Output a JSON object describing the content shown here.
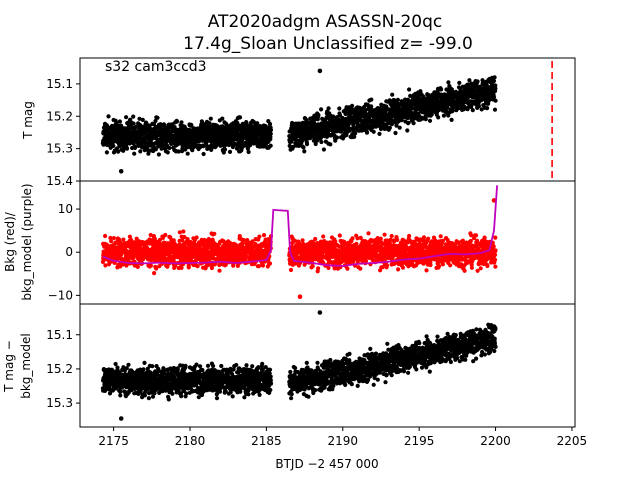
{
  "title_line1": "AT2020adgm  ASASSN-20qc",
  "title_line2": "17.4g_Sloan Unclassified z= -99.0",
  "annotation": "s32 cam3ccd3",
  "xlabel": "BTJD −2 457 000",
  "colors": {
    "points": "#000000",
    "bkg": "#ff0000",
    "model": "#bf00bf",
    "marker": "#ff0000"
  },
  "chart_data": [
    {
      "type": "scatter",
      "panel": "top",
      "ylabel": "T mag",
      "xlim": [
        2172.8,
        2205.2
      ],
      "ylim": [
        15.4,
        15.02
      ],
      "yticks": [
        15.1,
        15.2,
        15.3,
        15.4
      ],
      "ytick_labels": [
        "15.1",
        "15.2",
        "15.3",
        "15.4"
      ],
      "segments": [
        {
          "x_start": 2174.3,
          "x_end": 2185.3,
          "center_start": 15.26,
          "center_end": 15.26,
          "spread": 0.045
        },
        {
          "x_start": 2186.5,
          "x_end": 2200.0,
          "center_start": 15.26,
          "center_end": 15.12,
          "spread": 0.045
        }
      ],
      "outliers": [
        {
          "x": 2188.5,
          "y": 15.06
        },
        {
          "x": 2175.5,
          "y": 15.37
        }
      ],
      "vline_x": 2203.7
    },
    {
      "type": "scatter",
      "panel": "middle",
      "ylabel_line1": "Bkg (red)/",
      "ylabel_line2": "bkg_model (purple)",
      "xlim": [
        2172.8,
        2205.2
      ],
      "ylim": [
        -12,
        16.5
      ],
      "yticks": [
        10,
        0,
        -10
      ],
      "ytick_labels": [
        "10",
        "0",
        "−10"
      ],
      "segments": [
        {
          "x_start": 2174.3,
          "x_end": 2185.3,
          "center": 0,
          "spread": 3.2
        },
        {
          "x_start": 2186.5,
          "x_end": 2200.0,
          "center": 0,
          "spread": 3.2
        }
      ],
      "model": [
        [
          2174.3,
          -1.0
        ],
        [
          2175.0,
          -2.0
        ],
        [
          2176.0,
          -2.5
        ],
        [
          2177.0,
          -2.6
        ],
        [
          2178.0,
          -2.4
        ],
        [
          2179.0,
          -2.6
        ],
        [
          2180.0,
          -2.5
        ],
        [
          2181.0,
          -2.4
        ],
        [
          2182.0,
          -2.2
        ],
        [
          2183.0,
          -2.5
        ],
        [
          2184.0,
          -2.2
        ],
        [
          2185.0,
          -1.8
        ],
        [
          2185.3,
          0.5
        ],
        [
          2185.45,
          9.8
        ],
        [
          2186.4,
          9.6
        ],
        [
          2186.55,
          0.0
        ],
        [
          2186.8,
          -2.0
        ],
        [
          2188.0,
          -2.5
        ],
        [
          2189.0,
          -3.0
        ],
        [
          2190.0,
          -3.2
        ],
        [
          2191.0,
          -2.7
        ],
        [
          2192.0,
          -2.5
        ],
        [
          2193.0,
          -2.2
        ],
        [
          2194.0,
          -1.7
        ],
        [
          2195.0,
          -1.5
        ],
        [
          2196.0,
          -0.9
        ],
        [
          2197.0,
          -0.4
        ],
        [
          2198.0,
          -0.5
        ],
        [
          2199.0,
          -0.2
        ],
        [
          2199.6,
          0.5
        ],
        [
          2199.9,
          5.0
        ],
        [
          2200.1,
          15.5
        ]
      ],
      "outliers": [
        {
          "x": 2187.2,
          "y": -10.3
        },
        {
          "x": 2199.9,
          "y": 12.0
        }
      ]
    },
    {
      "type": "scatter",
      "panel": "bottom",
      "ylabel_line1": "T mag −",
      "ylabel_line2": "bkg_model",
      "xlim": [
        2172.8,
        2205.2
      ],
      "ylim": [
        15.37,
        15.01
      ],
      "yticks": [
        15.1,
        15.2,
        15.3
      ],
      "ytick_labels": [
        "15.1",
        "15.2",
        "15.3"
      ],
      "xticks": [
        2175,
        2180,
        2185,
        2190,
        2195,
        2200,
        2205
      ],
      "xtick_labels": [
        "2175",
        "2180",
        "2185",
        "2190",
        "2195",
        "2200",
        "2205"
      ],
      "segments": [
        {
          "x_start": 2174.3,
          "x_end": 2185.3,
          "center_start": 15.235,
          "center_end": 15.235,
          "spread": 0.04
        },
        {
          "x_start": 2186.5,
          "x_end": 2200.0,
          "center_start": 15.245,
          "center_end": 15.11,
          "spread": 0.04
        }
      ],
      "outliers": [
        {
          "x": 2188.5,
          "y": 15.035
        },
        {
          "x": 2175.5,
          "y": 15.345
        }
      ]
    }
  ]
}
